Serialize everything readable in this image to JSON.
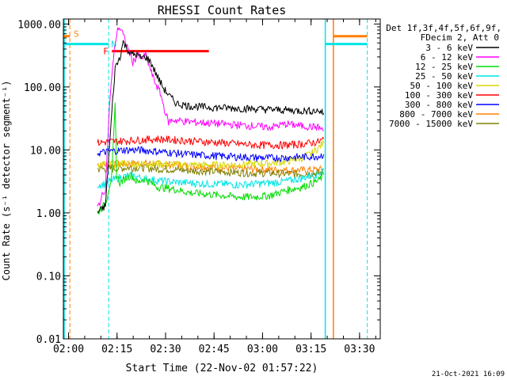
{
  "chart_data": {
    "type": "line",
    "title": "RHESSI Count Rates",
    "xlabel": "Start Time (22-Nov-02 01:57:22)",
    "ylabel": "Count Rate (s⁻¹ detector segment⁻¹)",
    "y_scale": "log",
    "ylim": [
      0.01,
      1200
    ],
    "xlim_minutes": [
      1.0,
      99.0
    ],
    "x_tick_labels": [
      "02:00",
      "02:15",
      "02:30",
      "02:45",
      "03:00",
      "03:15",
      "03:30"
    ],
    "x_tick_minutes": [
      2.6,
      17.6,
      32.6,
      47.6,
      62.6,
      77.6,
      92.6
    ],
    "y_tick_labels": [
      "0.01",
      "0.10",
      "1.00",
      "10.00",
      "100.00",
      "1000.00"
    ],
    "y_tick_values": [
      0.01,
      0.1,
      1,
      10,
      100,
      1000
    ],
    "legend_header": [
      "Det 1f,3f,4f,5f,6f,9f,",
      "FDecim 2, Att 0"
    ],
    "legend_position": "top-right, outside plot",
    "annotations": {
      "attenuator_label": "S",
      "night_label": "N",
      "flare_label": "F",
      "timestamp": "21-Oct-2021 16:09"
    },
    "markers": {
      "cyan_bars": [
        [
          1.0,
          15.0
        ],
        [
          82.0,
          95.0
        ]
      ],
      "cyan_bar_level": 480,
      "orange_bars": [
        [
          1.0,
          3.0
        ],
        [
          84.5,
          95.0
        ]
      ],
      "orange_bar_level": 640,
      "flare_bar": [
        16.0,
        46.0
      ],
      "flare_bar_level": 370,
      "dashed_cyan_x": [
        15.0,
        95.0
      ],
      "dashed_orange_x": [
        3.0
      ],
      "solid_cyan_x": [
        82.0
      ],
      "solid_orange_x": [
        84.5
      ]
    },
    "series": [
      {
        "name": "3 - 6 keV",
        "color": "#000000",
        "x": [
          11.5,
          14,
          16,
          17,
          18.5,
          19.5,
          20.5,
          22,
          23.5,
          25,
          26.5,
          28,
          30,
          32,
          34,
          36,
          40,
          45,
          50,
          55,
          60,
          65,
          70,
          75,
          80,
          81.5
        ],
        "y": [
          1.0,
          1.3,
          40,
          200,
          300,
          520,
          420,
          330,
          330,
          290,
          300,
          250,
          150,
          95,
          70,
          55,
          50,
          48,
          47,
          46,
          45,
          44,
          43,
          42,
          42,
          38
        ]
      },
      {
        "name": "6 - 12 keV",
        "color": "#ff00ff",
        "x": [
          11.5,
          14,
          15.5,
          17,
          18,
          19,
          20,
          21.5,
          22.5,
          24,
          25,
          26.5,
          27.5,
          29,
          31,
          32.5,
          33.5,
          35,
          40,
          45,
          50,
          55,
          60,
          65,
          70,
          75,
          80,
          81.5
        ],
        "y": [
          1.2,
          2.5,
          80,
          500,
          900,
          800,
          550,
          350,
          250,
          320,
          280,
          320,
          220,
          130,
          80,
          40,
          28,
          30,
          28,
          27,
          26,
          25,
          24,
          23,
          26,
          24,
          23,
          20
        ]
      },
      {
        "name": "12 - 25 keV",
        "color": "#00dd00",
        "x": [
          11.5,
          14,
          16,
          17,
          17.5,
          18.5,
          20,
          22,
          24,
          26,
          30,
          35,
          40,
          45,
          50,
          55,
          60,
          65,
          70,
          75,
          78,
          80,
          81.5
        ],
        "y": [
          1.0,
          1.4,
          4.0,
          50,
          4.0,
          3.0,
          3.5,
          4.0,
          3.0,
          3.5,
          2.6,
          2.4,
          2.1,
          2.0,
          1.9,
          1.8,
          1.8,
          1.9,
          2.3,
          2.6,
          3.0,
          3.3,
          4.0
        ]
      },
      {
        "name": "25 - 50 keV",
        "color": "#00e5e5",
        "x": [
          11.5,
          14,
          16,
          18,
          20,
          22,
          25,
          30,
          35,
          40,
          45,
          50,
          55,
          60,
          65,
          70,
          75,
          80,
          81.5
        ],
        "y": [
          2.8,
          2.9,
          3.3,
          3.6,
          3.8,
          4.0,
          3.6,
          3.3,
          3.1,
          3.0,
          2.9,
          2.9,
          2.8,
          2.9,
          3.0,
          3.2,
          3.6,
          4.2,
          5.0
        ]
      },
      {
        "name": "50 - 100 keV",
        "color": "#d8d800",
        "x": [
          11.5,
          15,
          20,
          25,
          30,
          35,
          40,
          45,
          50,
          55,
          60,
          65,
          70,
          75,
          78,
          80,
          81.5
        ],
        "y": [
          6.0,
          6.0,
          6.1,
          6.0,
          6.0,
          5.9,
          5.8,
          5.8,
          5.8,
          5.9,
          6.0,
          6.2,
          6.6,
          7.5,
          9.0,
          11,
          13
        ]
      },
      {
        "name": "100 - 300 keV",
        "color": "#ff0000",
        "x": [
          11.5,
          15,
          20,
          25,
          30,
          35,
          40,
          45,
          50,
          55,
          60,
          65,
          70,
          75,
          80,
          81.5
        ],
        "y": [
          13,
          13.5,
          14,
          14.5,
          15,
          14.5,
          14,
          13.5,
          13,
          12.5,
          12,
          12,
          12,
          12.5,
          13.5,
          15
        ]
      },
      {
        "name": "300 - 800 keV",
        "color": "#0000ff",
        "x": [
          11.5,
          15,
          20,
          25,
          30,
          35,
          40,
          45,
          50,
          55,
          60,
          65,
          70,
          75,
          80,
          81.5
        ],
        "y": [
          9.0,
          9.5,
          10,
          10,
          9.5,
          9.0,
          8.5,
          8.2,
          8.0,
          7.8,
          7.6,
          7.5,
          7.6,
          7.8,
          8.0,
          8.5
        ]
      },
      {
        "name": "800 - 7000 keV",
        "color": "#ff8000",
        "x": [
          11.5,
          15,
          20,
          25,
          30,
          35,
          40,
          45,
          50,
          55,
          60,
          65,
          70,
          75,
          80,
          81.5
        ],
        "y": [
          6.0,
          5.8,
          6.0,
          6.2,
          6.0,
          5.8,
          5.6,
          5.4,
          5.2,
          5.0,
          5.0,
          4.9,
          4.8,
          4.8,
          4.9,
          5.0
        ]
      },
      {
        "name": "7000 - 15000 keV",
        "color": "#808000",
        "x": [
          11.5,
          15,
          20,
          25,
          30,
          35,
          40,
          45,
          50,
          55,
          60,
          65,
          70,
          75,
          80,
          81.5
        ],
        "y": [
          5.0,
          5.0,
          5.2,
          5.3,
          5.0,
          4.9,
          4.7,
          4.6,
          4.5,
          4.4,
          4.3,
          4.3,
          4.2,
          4.2,
          4.3,
          4.4
        ]
      }
    ]
  }
}
